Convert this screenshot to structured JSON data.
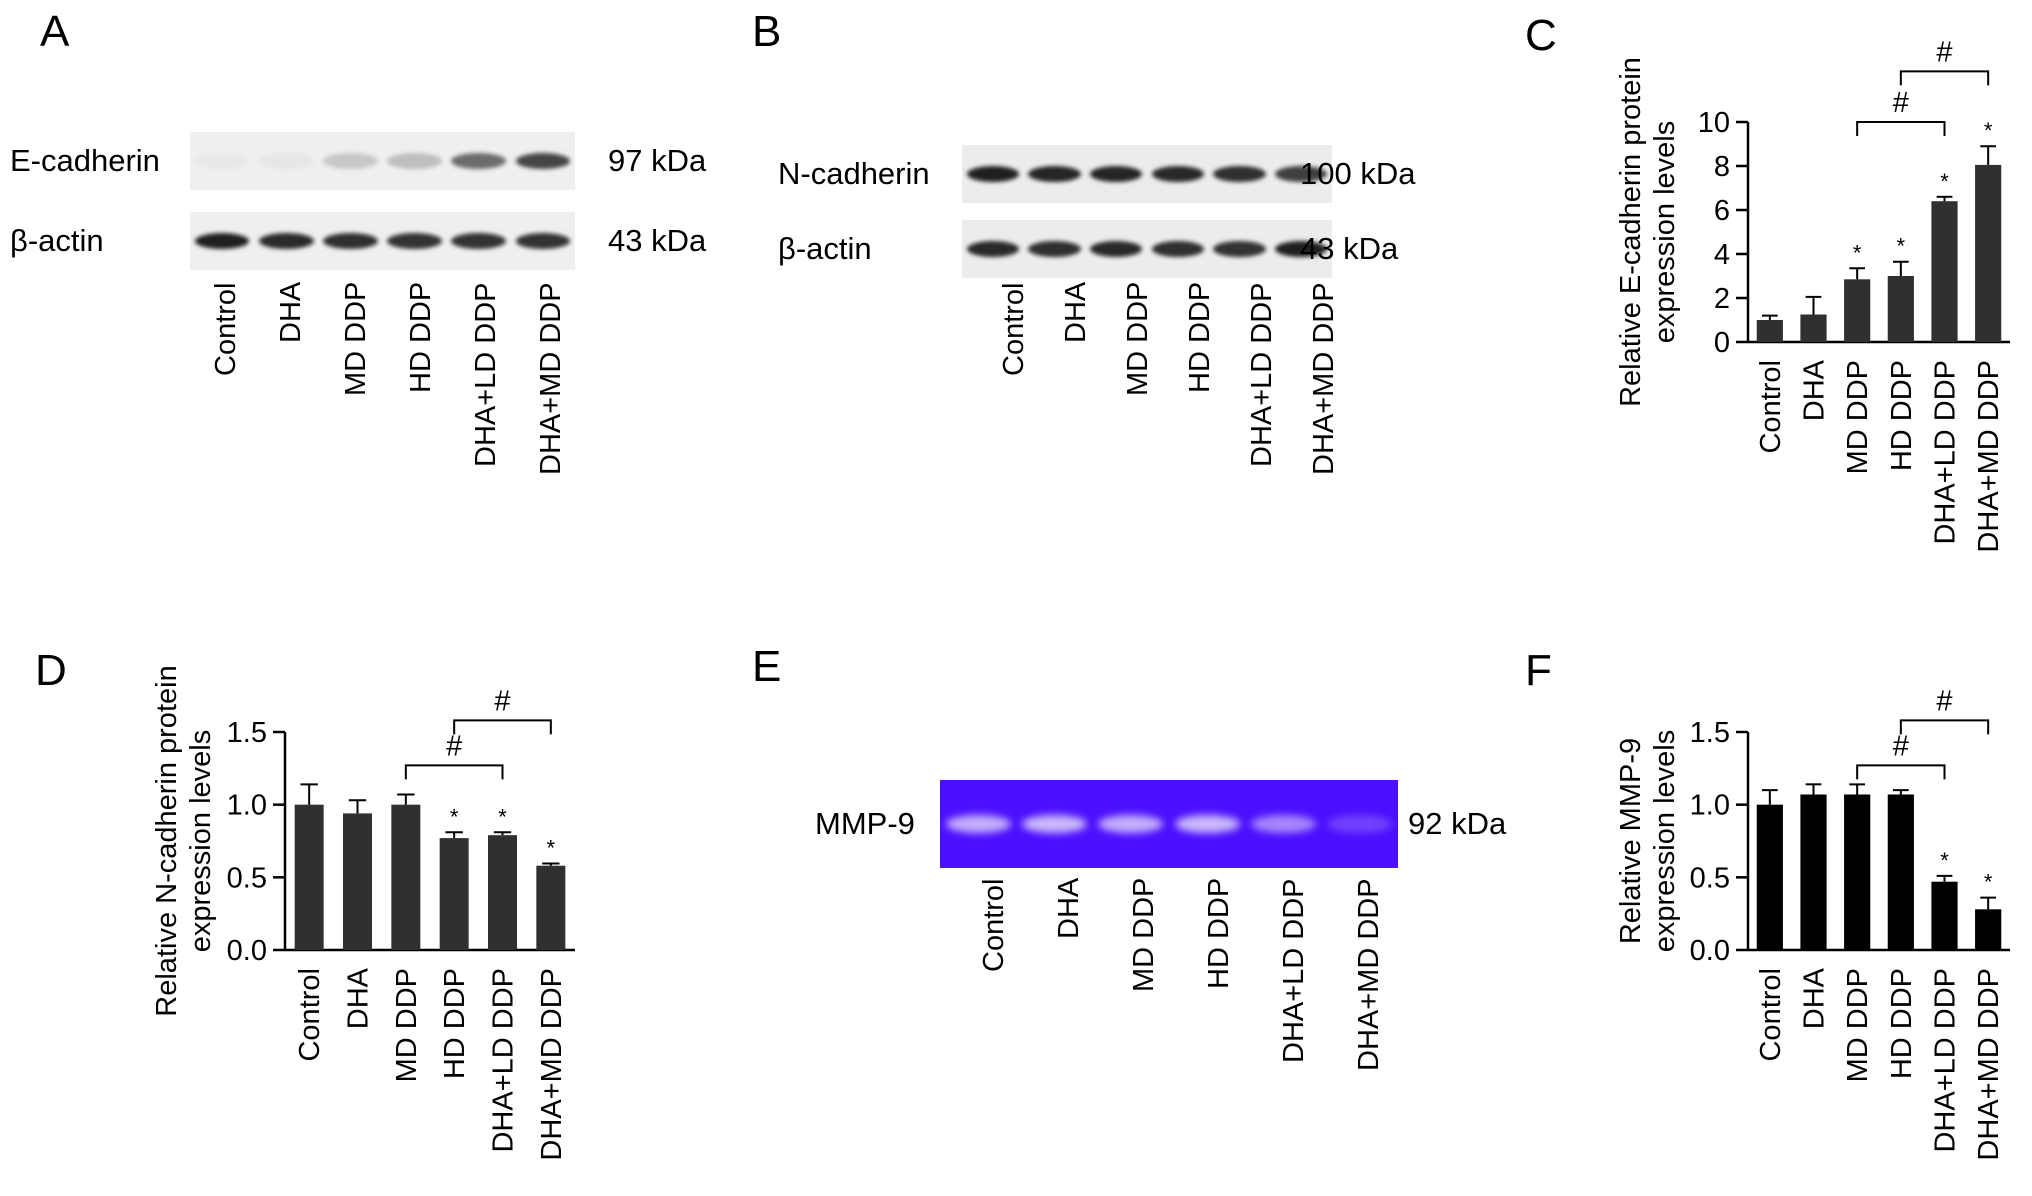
{
  "panels": {
    "A": {
      "letter": "A",
      "rows": [
        {
          "label": "E-cadherin",
          "kda": "97 kDa",
          "intensity": [
            0.03,
            0.04,
            0.18,
            0.22,
            0.6,
            0.78
          ]
        },
        {
          "label": "β-actin",
          "kda": "43 kDa",
          "intensity": [
            0.95,
            0.9,
            0.88,
            0.86,
            0.86,
            0.86
          ]
        }
      ],
      "lanes": [
        "Control",
        "DHA",
        "MD DDP",
        "HD DDP",
        "DHA+LD DDP",
        "DHA+MD DDP"
      ]
    },
    "B": {
      "letter": "B",
      "rows": [
        {
          "label": "N-cadherin",
          "kda": "100 kDa",
          "intensity": [
            0.95,
            0.92,
            0.92,
            0.9,
            0.88,
            0.8
          ]
        },
        {
          "label": "β-actin",
          "kda": "43 kDa",
          "intensity": [
            0.9,
            0.88,
            0.9,
            0.88,
            0.86,
            0.95
          ]
        }
      ],
      "lanes": [
        "Control",
        "DHA",
        "MD DDP",
        "HD DDP",
        "DHA+LD DDP",
        "DHA+MD DDP"
      ]
    },
    "E": {
      "letter": "E",
      "rows": [
        {
          "label": "MMP-9",
          "kda": "92 kDa",
          "intensity": [
            0.8,
            0.85,
            0.8,
            0.85,
            0.6,
            0.25
          ]
        }
      ],
      "lanes": [
        "Control",
        "DHA",
        "MD DDP",
        "HD DDP",
        "DHA+LD DDP",
        "DHA+MD DDP"
      ],
      "colors": {
        "gel": "#4c0fff",
        "band": "#d9cdfb"
      }
    }
  },
  "chart_data": [
    {
      "panel": "C",
      "type": "bar",
      "ylabel": "Relative E-cadherin protein expression levels",
      "ylabel_lines": [
        "Relative E-cadherin protein",
        "expression levels"
      ],
      "categories": [
        "Control",
        "DHA",
        "MD DDP",
        "HD DDP",
        "DHA+LD DDP",
        "DHA+MD DDP"
      ],
      "values": [
        1.0,
        1.25,
        2.85,
        3.0,
        6.4,
        8.05
      ],
      "errors": [
        0.2,
        0.8,
        0.5,
        0.65,
        0.2,
        0.85
      ],
      "significance": [
        "",
        "",
        "*",
        "*",
        "*",
        "*"
      ],
      "ylim": [
        0,
        10
      ],
      "yticks": [
        0,
        2,
        4,
        6,
        8,
        10
      ],
      "ytick_labels": [
        "0",
        "2",
        "4",
        "6",
        "8",
        "10"
      ],
      "brackets": [
        {
          "from": 2,
          "to": 4,
          "label": "#",
          "level": 10.0
        },
        {
          "from": 3,
          "to": 5,
          "label": "#",
          "level": 12.3
        }
      ],
      "bar_color": "#303030"
    },
    {
      "panel": "D",
      "type": "bar",
      "ylabel": "Relative N-cadherin protein expression levels",
      "ylabel_lines": [
        "Relative N-cadherin protein",
        "expression levels"
      ],
      "categories": [
        "Control",
        "DHA",
        "MD DDP",
        "HD DDP",
        "DHA+LD DDP",
        "DHA+MD DDP"
      ],
      "values": [
        1.0,
        0.94,
        1.0,
        0.77,
        0.79,
        0.58
      ],
      "errors": [
        0.14,
        0.09,
        0.07,
        0.04,
        0.02,
        0.015
      ],
      "significance": [
        "",
        "",
        "",
        "*",
        "*",
        "*"
      ],
      "ylim": [
        0,
        1.5
      ],
      "yticks": [
        0,
        0.5,
        1.0,
        1.5
      ],
      "ytick_labels": [
        "0.0",
        "0.5",
        "1.0",
        "1.5"
      ],
      "brackets": [
        {
          "from": 2,
          "to": 4,
          "label": "#",
          "level": 1.27
        },
        {
          "from": 3,
          "to": 5,
          "label": "#",
          "level": 1.58
        }
      ],
      "bar_color": "#303030"
    },
    {
      "panel": "F",
      "type": "bar",
      "ylabel": "Relative MMP-9 expression levels",
      "ylabel_lines": [
        "Relative MMP-9",
        "expression levels"
      ],
      "categories": [
        "Control",
        "DHA",
        "MD DDP",
        "HD DDP",
        "DHA+LD DDP",
        "DHA+MD DDP"
      ],
      "values": [
        1.0,
        1.07,
        1.07,
        1.07,
        0.47,
        0.28
      ],
      "errors": [
        0.1,
        0.07,
        0.07,
        0.03,
        0.04,
        0.08
      ],
      "significance": [
        "",
        "",
        "",
        "",
        "*",
        "*"
      ],
      "ylim": [
        0,
        1.5
      ],
      "yticks": [
        0,
        0.5,
        1.0,
        1.5
      ],
      "ytick_labels": [
        "0.0",
        "0.5",
        "1.0",
        "1.5"
      ],
      "brackets": [
        {
          "from": 2,
          "to": 4,
          "label": "#",
          "level": 1.27
        },
        {
          "from": 3,
          "to": 5,
          "label": "#",
          "level": 1.58
        }
      ],
      "bar_color": "#000000"
    }
  ]
}
